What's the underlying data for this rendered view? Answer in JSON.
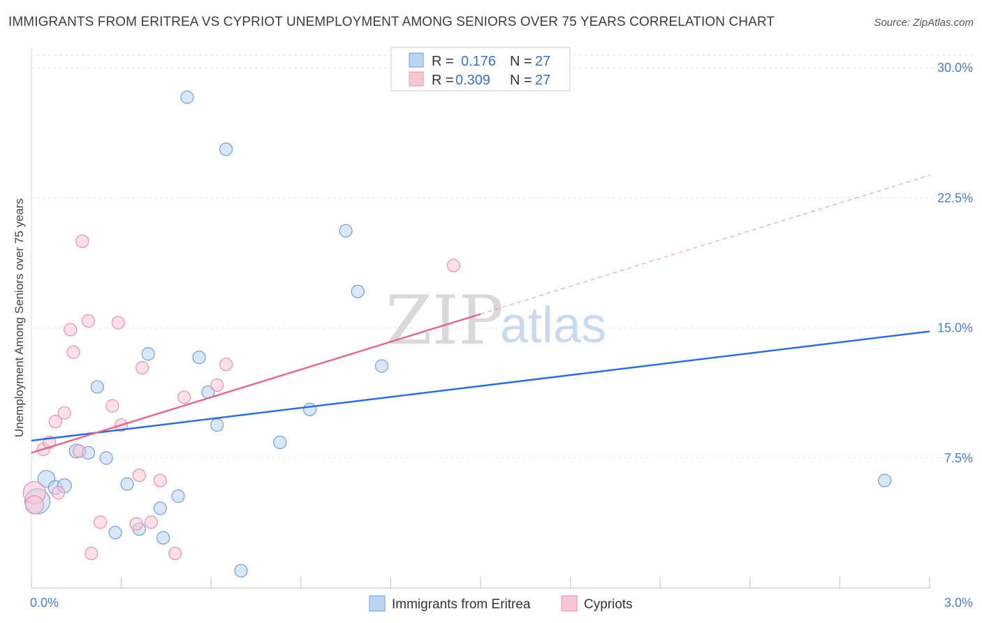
{
  "title": "IMMIGRANTS FROM ERITREA VS CYPRIOT UNEMPLOYMENT AMONG SENIORS OVER 75 YEARS CORRELATION CHART",
  "source": "Source: ZipAtlas.com",
  "watermark": {
    "zip": "ZIP",
    "atlas": "atlas"
  },
  "chart_data": {
    "type": "scatter",
    "ylabel": "Unemployment Among Seniors over 75 years",
    "xlabel": "",
    "xlim": [
      0,
      3.0
    ],
    "ylim": [
      0,
      30.0
    ],
    "x_tick_labels": [
      {
        "value": 0,
        "label": "0.0%"
      },
      {
        "value": 3.0,
        "label": "3.0%"
      }
    ],
    "y_tick_labels": [
      {
        "value": 7.5,
        "label": "7.5%"
      },
      {
        "value": 15.0,
        "label": "15.0%"
      },
      {
        "value": 22.5,
        "label": "22.5%"
      },
      {
        "value": 30.0,
        "label": "30.0%"
      }
    ],
    "legend": [
      {
        "r_label": "R =",
        "r_value": "0.176",
        "n_label": "N =",
        "n_value": "27"
      },
      {
        "r_label": "R =",
        "r_value": "0.309",
        "n_label": "N =",
        "n_value": "27"
      }
    ],
    "series": [
      {
        "name": "Immigrants from Eritrea",
        "color": "#6f9fdc",
        "fill": "#bcd3f2",
        "trend": {
          "x0": 0,
          "y0": 8.5,
          "x1": 3.0,
          "y1": 14.8
        },
        "points": [
          {
            "x": 0.02,
            "y": 5.0,
            "s": 18
          },
          {
            "x": 0.05,
            "y": 6.3,
            "s": 12
          },
          {
            "x": 0.08,
            "y": 5.8,
            "s": 10
          },
          {
            "x": 0.11,
            "y": 5.9,
            "s": 10
          },
          {
            "x": 0.15,
            "y": 7.9,
            "s": 10
          },
          {
            "x": 0.19,
            "y": 7.8,
            "s": 9
          },
          {
            "x": 0.22,
            "y": 11.6,
            "s": 9
          },
          {
            "x": 0.25,
            "y": 7.5,
            "s": 9
          },
          {
            "x": 0.28,
            "y": 3.2,
            "s": 9
          },
          {
            "x": 0.32,
            "y": 6.0,
            "s": 9
          },
          {
            "x": 0.36,
            "y": 3.4,
            "s": 9
          },
          {
            "x": 0.39,
            "y": 13.5,
            "s": 9
          },
          {
            "x": 0.43,
            "y": 4.6,
            "s": 9
          },
          {
            "x": 0.44,
            "y": 2.9,
            "s": 9
          },
          {
            "x": 0.49,
            "y": 5.3,
            "s": 9
          },
          {
            "x": 0.52,
            "y": 28.3,
            "s": 9
          },
          {
            "x": 0.56,
            "y": 13.3,
            "s": 9
          },
          {
            "x": 0.59,
            "y": 11.3,
            "s": 9
          },
          {
            "x": 0.62,
            "y": 9.4,
            "s": 9
          },
          {
            "x": 0.65,
            "y": 25.3,
            "s": 9
          },
          {
            "x": 0.7,
            "y": 1.0,
            "s": 9
          },
          {
            "x": 0.83,
            "y": 8.4,
            "s": 9
          },
          {
            "x": 0.93,
            "y": 10.3,
            "s": 9
          },
          {
            "x": 1.05,
            "y": 20.6,
            "s": 9
          },
          {
            "x": 1.09,
            "y": 17.1,
            "s": 9
          },
          {
            "x": 1.17,
            "y": 12.8,
            "s": 9
          },
          {
            "x": 2.85,
            "y": 6.2,
            "s": 9
          }
        ]
      },
      {
        "name": "Cypriots",
        "color": "#e890ab",
        "fill": "#f7c6d5",
        "trend": {
          "x0": 0,
          "y0": 7.8,
          "x1": 1.5,
          "y1": 15.8
        },
        "trend_ext": {
          "x0": 1.5,
          "y0": 15.8,
          "x1": 3.0,
          "y1": 23.8
        },
        "points": [
          {
            "x": 0.01,
            "y": 5.5,
            "s": 16
          },
          {
            "x": 0.01,
            "y": 4.8,
            "s": 13
          },
          {
            "x": 0.04,
            "y": 8.0,
            "s": 9
          },
          {
            "x": 0.06,
            "y": 8.4,
            "s": 9
          },
          {
            "x": 0.08,
            "y": 9.6,
            "s": 9
          },
          {
            "x": 0.09,
            "y": 5.5,
            "s": 9
          },
          {
            "x": 0.11,
            "y": 10.1,
            "s": 9
          },
          {
            "x": 0.13,
            "y": 14.9,
            "s": 9
          },
          {
            "x": 0.14,
            "y": 13.6,
            "s": 9
          },
          {
            "x": 0.16,
            "y": 7.9,
            "s": 9
          },
          {
            "x": 0.17,
            "y": 20.0,
            "s": 9
          },
          {
            "x": 0.19,
            "y": 15.4,
            "s": 9
          },
          {
            "x": 0.2,
            "y": 2.0,
            "s": 9
          },
          {
            "x": 0.23,
            "y": 3.8,
            "s": 9
          },
          {
            "x": 0.27,
            "y": 10.5,
            "s": 9
          },
          {
            "x": 0.29,
            "y": 15.3,
            "s": 9
          },
          {
            "x": 0.3,
            "y": 9.4,
            "s": 9
          },
          {
            "x": 0.35,
            "y": 3.7,
            "s": 9
          },
          {
            "x": 0.36,
            "y": 6.5,
            "s": 9
          },
          {
            "x": 0.37,
            "y": 12.7,
            "s": 9
          },
          {
            "x": 0.4,
            "y": 3.8,
            "s": 9
          },
          {
            "x": 0.43,
            "y": 6.2,
            "s": 9
          },
          {
            "x": 0.48,
            "y": 2.0,
            "s": 9
          },
          {
            "x": 0.51,
            "y": 11.0,
            "s": 9
          },
          {
            "x": 0.62,
            "y": 11.7,
            "s": 9
          },
          {
            "x": 0.65,
            "y": 12.9,
            "s": 9
          },
          {
            "x": 1.41,
            "y": 18.6,
            "s": 9
          }
        ]
      }
    ]
  }
}
